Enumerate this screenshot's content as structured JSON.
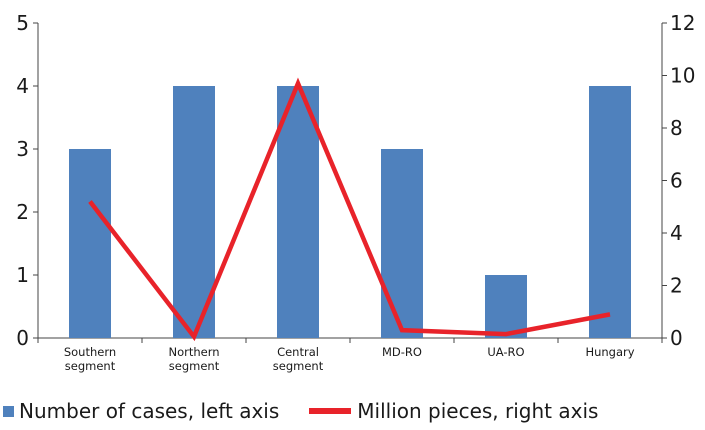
{
  "chart_data": {
    "type": "bar",
    "categories": [
      [
        "Southern",
        "segment"
      ],
      [
        "Northern",
        "segment"
      ],
      [
        "Central",
        "segment"
      ],
      [
        "MD-RO"
      ],
      [
        "UA-RO"
      ],
      [
        "Hungary"
      ]
    ],
    "series": [
      {
        "name": "Number of cases, left axis",
        "type": "bar",
        "axis": "left",
        "color": "#4f81bd",
        "values": [
          3,
          4,
          4,
          3,
          1,
          4
        ]
      },
      {
        "name": "Million pieces, right axis",
        "type": "line",
        "axis": "right",
        "color": "#e8232a",
        "values": [
          5.2,
          0.05,
          9.7,
          0.3,
          0.15,
          0.9
        ]
      }
    ],
    "y_left": {
      "lim": [
        0,
        5
      ],
      "ticks": [
        "0",
        "1",
        "2",
        "3",
        "4",
        "5"
      ]
    },
    "y_right": {
      "lim": [
        0,
        12
      ],
      "ticks": [
        "0",
        "2",
        "4",
        "6",
        "8",
        "10",
        "12"
      ]
    },
    "grid": false,
    "legend": "bottom-left"
  }
}
